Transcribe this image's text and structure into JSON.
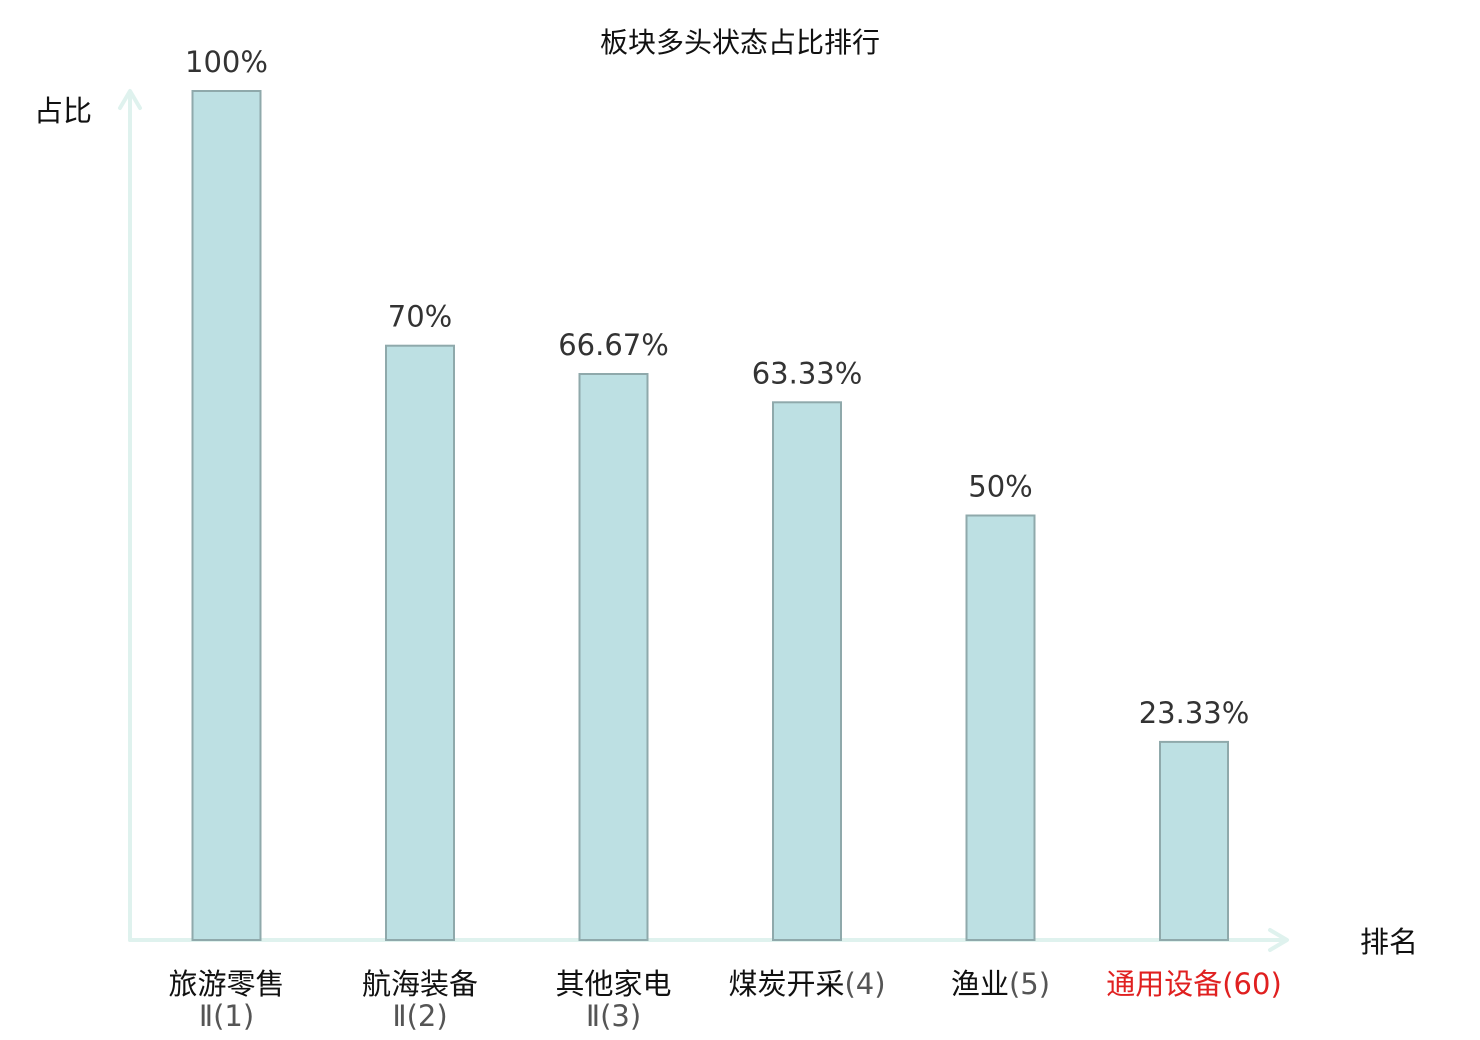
{
  "chart_data": {
    "type": "bar",
    "title": "板块多头状态占比排行",
    "ylabel": "占比",
    "xlabel": "排名",
    "ylim": [
      0,
      100
    ],
    "grid": false,
    "legend": "none",
    "categories": [
      {
        "name": "旅游零售",
        "rank": "Ⅱ(1)",
        "highlight": false
      },
      {
        "name": "航海装备",
        "rank": "Ⅱ(2)",
        "highlight": false
      },
      {
        "name": "其他家电",
        "rank": "Ⅱ(3)",
        "highlight": false
      },
      {
        "name": "煤炭开采",
        "rank": "(4)",
        "highlight": false
      },
      {
        "name": "渔业",
        "rank": "(5)",
        "highlight": false
      },
      {
        "name": "通用设备",
        "rank": "(60)",
        "highlight": true
      }
    ],
    "values": [
      100,
      70,
      66.67,
      63.33,
      50,
      23.33
    ],
    "value_labels": [
      "100%",
      "70%",
      "66.67%",
      "63.33%",
      "50%",
      "23.33%"
    ]
  },
  "colors": {
    "bar_fill": "#bde0e3",
    "bar_stroke": "#8fa9ab",
    "axis": "#dff2ee",
    "highlight": "#e02020"
  }
}
